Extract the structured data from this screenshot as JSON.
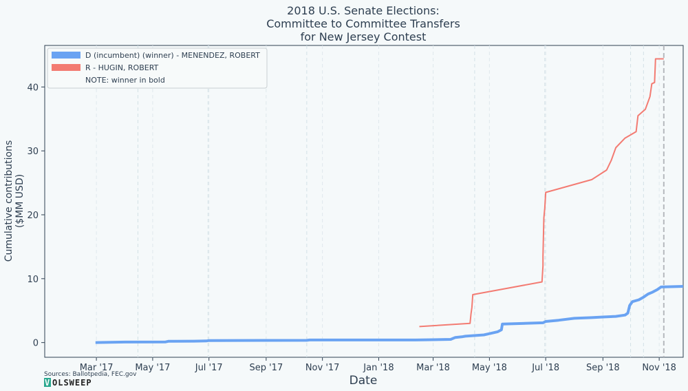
{
  "chart_data": {
    "type": "line",
    "title": [
      "2018 U.S. Senate Elections:",
      "Committee to Committee Transfers",
      "for New Jersey Contest"
    ],
    "xlabel": "Date",
    "ylabel": [
      "Cumulative contributions",
      "($MM USD)"
    ],
    "x_ticks": [
      {
        "date": "2017-03-01",
        "label": "Mar '17"
      },
      {
        "date": "2017-05-01",
        "label": "May '17"
      },
      {
        "date": "2017-07-01",
        "label": "Jul '17"
      },
      {
        "date": "2017-09-01",
        "label": "Sep '17"
      },
      {
        "date": "2017-11-01",
        "label": "Nov '17"
      },
      {
        "date": "2018-01-01",
        "label": "Jan '18"
      },
      {
        "date": "2018-03-01",
        "label": "Mar '18"
      },
      {
        "date": "2018-05-01",
        "label": "May '18"
      },
      {
        "date": "2018-07-01",
        "label": "Jul '18"
      },
      {
        "date": "2018-09-01",
        "label": "Sep '18"
      },
      {
        "date": "2018-11-01",
        "label": "Nov '18"
      }
    ],
    "xlim": [
      "2017-01-04",
      "2018-11-27"
    ],
    "y_ticks": [
      0,
      10,
      20,
      30,
      40
    ],
    "ylim": [
      -2.3,
      46.5
    ],
    "minor_gridlines": [
      "2017-04-15",
      "2017-06-30",
      "2017-10-15",
      "2018-04-15",
      "2018-06-30",
      "2018-10-01",
      "2018-10-15"
    ],
    "election_day": "2018-11-06",
    "grid": "vertical dashed",
    "legend_position": "top-left",
    "series": [
      {
        "name": "D (incumbent) (winner) - MENENDEZ, ROBERT",
        "color": "#6aa3f2",
        "bold": true,
        "points": [
          [
            "2017-02-28",
            0.0
          ],
          [
            "2017-04-01",
            0.08
          ],
          [
            "2017-05-15",
            0.1
          ],
          [
            "2017-05-18",
            0.2
          ],
          [
            "2017-06-15",
            0.22
          ],
          [
            "2017-06-28",
            0.25
          ],
          [
            "2017-07-01",
            0.32
          ],
          [
            "2017-10-15",
            0.35
          ],
          [
            "2017-10-18",
            0.4
          ],
          [
            "2018-02-10",
            0.4
          ],
          [
            "2018-03-20",
            0.5
          ],
          [
            "2018-03-25",
            0.8
          ],
          [
            "2018-04-01",
            0.9
          ],
          [
            "2018-04-05",
            1.0
          ],
          [
            "2018-04-25",
            1.2
          ],
          [
            "2018-05-01",
            1.4
          ],
          [
            "2018-05-10",
            1.7
          ],
          [
            "2018-05-14",
            2.0
          ],
          [
            "2018-05-15",
            2.9
          ],
          [
            "2018-06-28",
            3.1
          ],
          [
            "2018-07-01",
            3.3
          ],
          [
            "2018-07-15",
            3.5
          ],
          [
            "2018-08-01",
            3.8
          ],
          [
            "2018-08-20",
            3.9
          ],
          [
            "2018-09-01",
            4.0
          ],
          [
            "2018-09-15",
            4.1
          ],
          [
            "2018-09-25",
            4.3
          ],
          [
            "2018-09-28",
            4.6
          ],
          [
            "2018-09-30",
            5.8
          ],
          [
            "2018-10-03",
            6.4
          ],
          [
            "2018-10-10",
            6.7
          ],
          [
            "2018-10-15",
            7.1
          ],
          [
            "2018-10-20",
            7.6
          ],
          [
            "2018-10-25",
            7.9
          ],
          [
            "2018-10-30",
            8.3
          ],
          [
            "2018-11-03",
            8.7
          ],
          [
            "2018-11-27",
            8.8
          ]
        ]
      },
      {
        "name": "R - HUGIN, ROBERT",
        "color": "#f37b72",
        "bold": false,
        "points": [
          [
            "2018-02-14",
            2.5
          ],
          [
            "2018-04-10",
            3.0
          ],
          [
            "2018-04-11",
            4.5
          ],
          [
            "2018-04-12",
            5.5
          ],
          [
            "2018-04-13",
            7.5
          ],
          [
            "2018-06-27",
            9.5
          ],
          [
            "2018-06-28",
            12.0
          ],
          [
            "2018-06-28",
            13.5
          ],
          [
            "2018-06-29",
            19.5
          ],
          [
            "2018-06-30",
            21.0
          ],
          [
            "2018-07-01",
            23.5
          ],
          [
            "2018-08-20",
            25.5
          ],
          [
            "2018-09-05",
            27.0
          ],
          [
            "2018-09-10",
            28.5
          ],
          [
            "2018-09-15",
            30.5
          ],
          [
            "2018-09-25",
            32.0
          ],
          [
            "2018-10-07",
            33.0
          ],
          [
            "2018-10-09",
            35.5
          ],
          [
            "2018-10-17",
            36.5
          ],
          [
            "2018-10-22",
            38.5
          ],
          [
            "2018-10-24",
            40.5
          ],
          [
            "2018-10-27",
            40.7
          ],
          [
            "2018-10-28",
            44.4
          ],
          [
            "2018-11-06",
            44.4
          ]
        ]
      }
    ],
    "legend_note": "NOTE: winner in bold"
  },
  "footer": {
    "sources": "Sources: Ballotpedia, FEC.gov",
    "brand_initial": "V",
    "brand_rest": "OLSWEEP"
  }
}
